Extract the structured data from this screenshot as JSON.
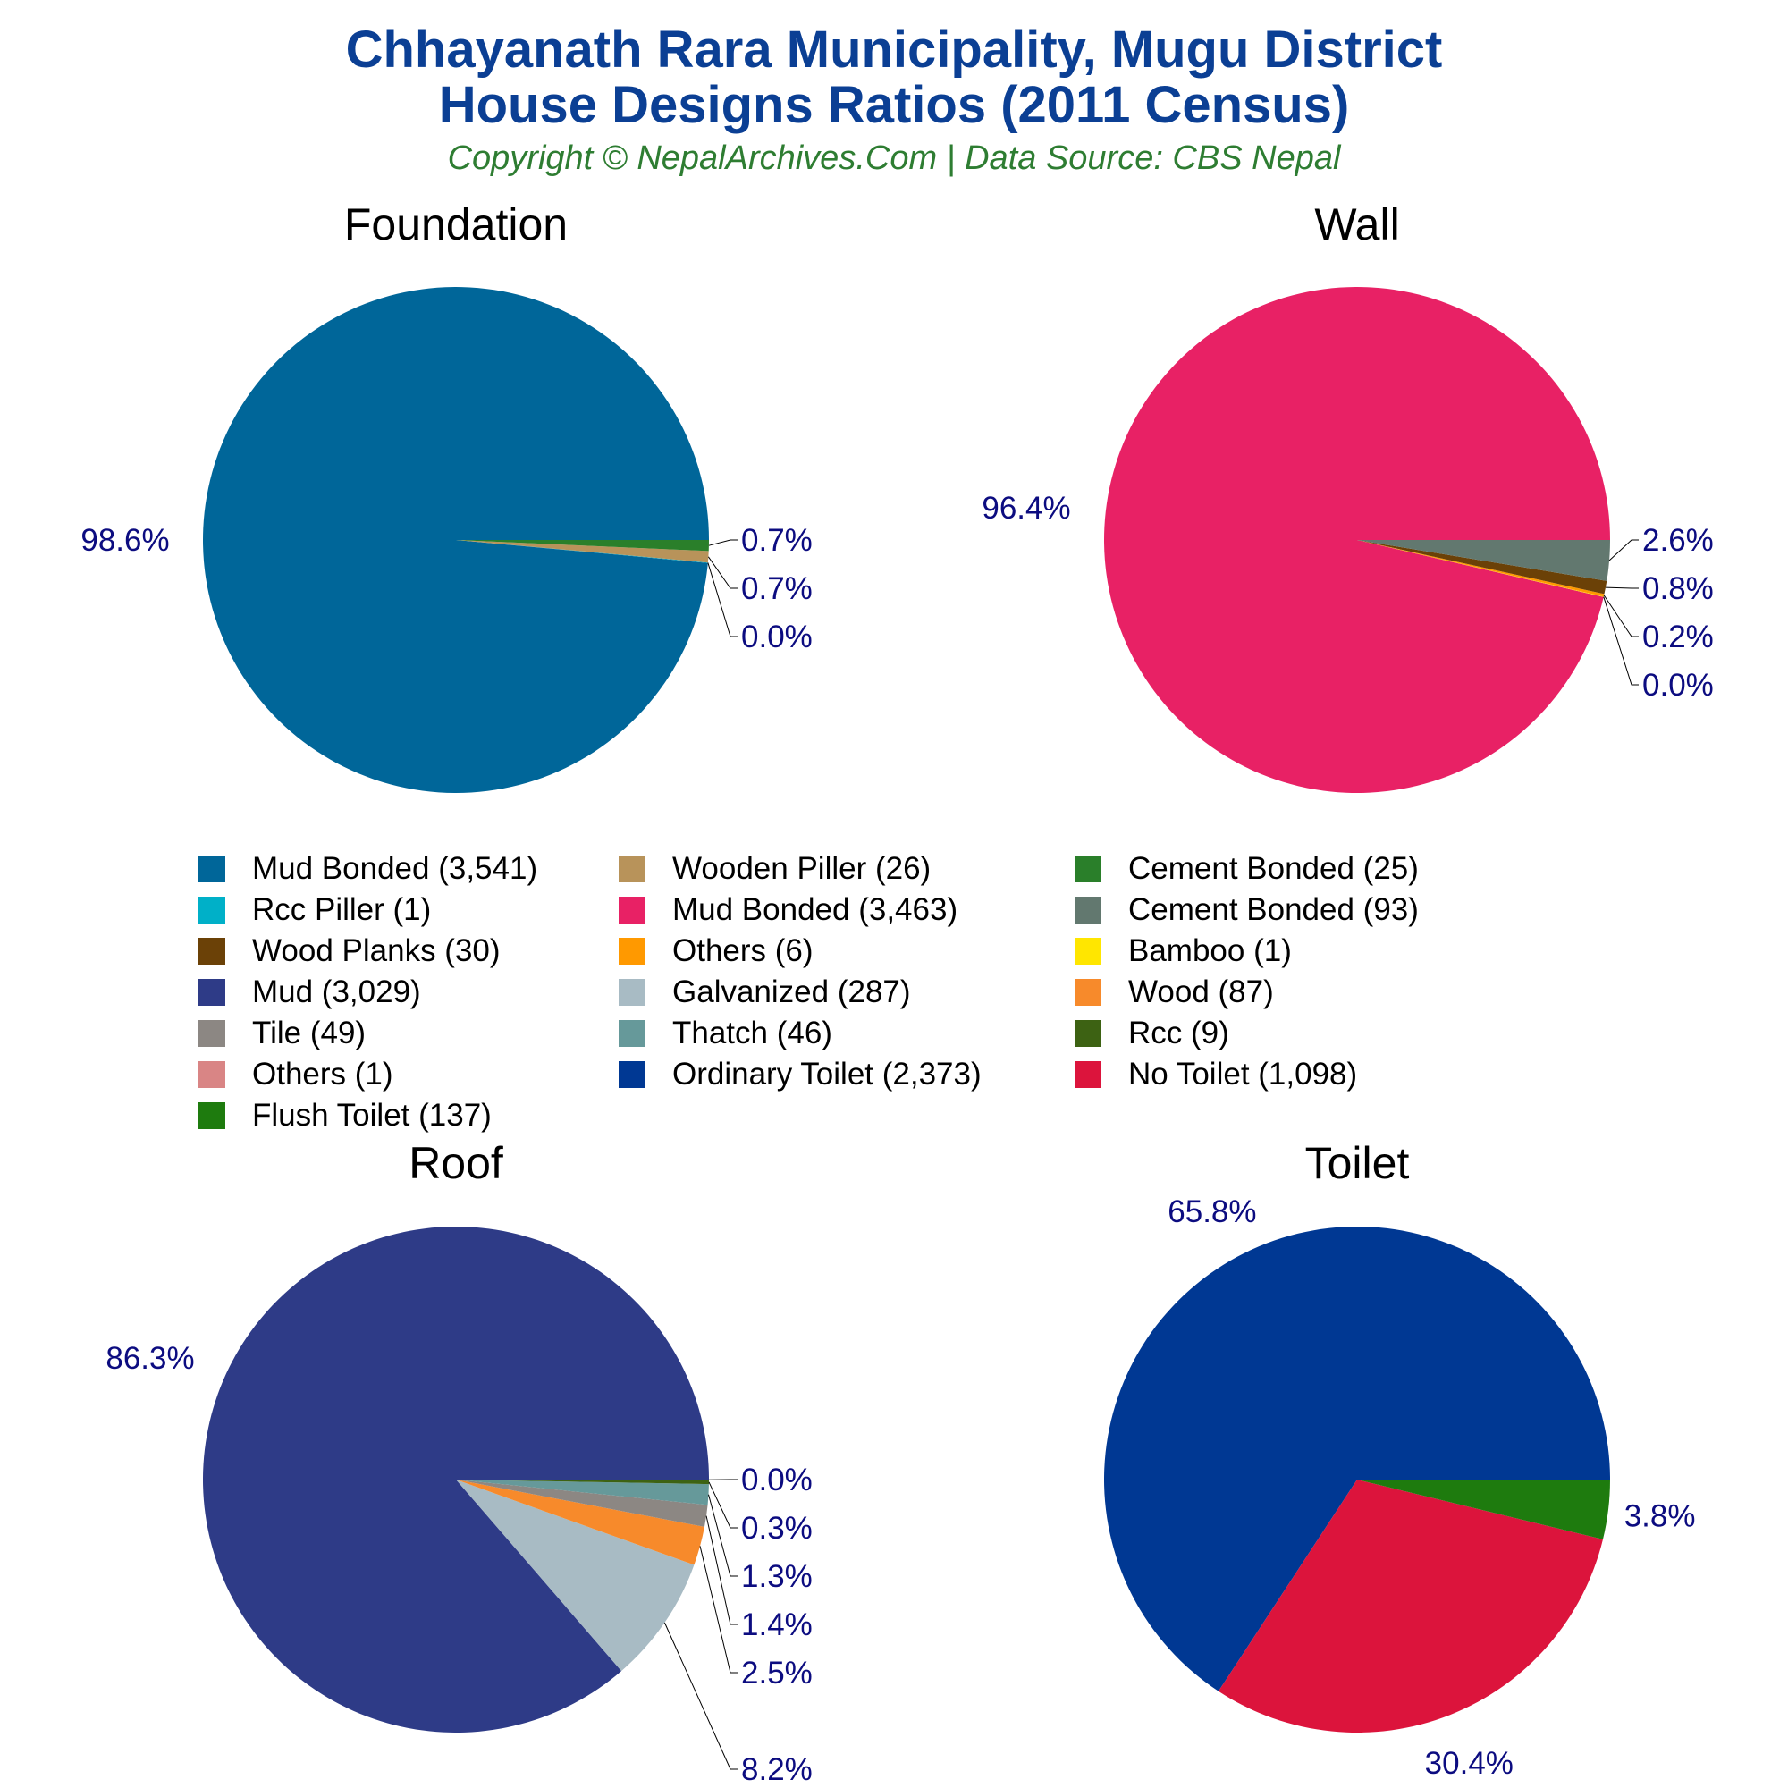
{
  "header": {
    "title_line1": "Chhayanath Rara Municipality, Mugu District",
    "title_line2": "House Designs Ratios (2011 Census)",
    "subtitle": "Copyright © NepalArchives.Com | Data Source: CBS Nepal"
  },
  "chart_data": [
    {
      "type": "pie",
      "title": "Foundation",
      "slices": [
        {
          "label": "Mud Bonded",
          "value": 3541,
          "pct_label": "98.6%",
          "color": "#006699"
        },
        {
          "label": "Rcc Piller",
          "value": 1,
          "pct_label": "0.0%",
          "color": "#00b0c8"
        },
        {
          "label": "Wooden Piller",
          "value": 26,
          "pct_label": "0.7%",
          "color": "#b8935a"
        },
        {
          "label": "Cement Bonded",
          "value": 25,
          "pct_label": "0.7%",
          "color": "#2a7f2a"
        }
      ]
    },
    {
      "type": "pie",
      "title": "Wall",
      "slices": [
        {
          "label": "Mud Bonded",
          "value": 3463,
          "pct_label": "96.4%",
          "color": "#e82165"
        },
        {
          "label": "Bamboo",
          "value": 1,
          "pct_label": "0.0%",
          "color": "#ffe600"
        },
        {
          "label": "Others",
          "value": 6,
          "pct_label": "0.2%",
          "color": "#ff9900"
        },
        {
          "label": "Wood Planks",
          "value": 30,
          "pct_label": "0.8%",
          "color": "#6b4107"
        },
        {
          "label": "Cement Bonded",
          "value": 93,
          "pct_label": "2.6%",
          "color": "#62786f"
        }
      ]
    },
    {
      "type": "pie",
      "title": "Roof",
      "slices": [
        {
          "label": "Mud",
          "value": 3029,
          "pct_label": "86.3%",
          "color": "#2e3b87"
        },
        {
          "label": "Galvanized",
          "value": 287,
          "pct_label": "8.2%",
          "color": "#a8bbc4"
        },
        {
          "label": "Wood",
          "value": 87,
          "pct_label": "2.5%",
          "color": "#f78a2b"
        },
        {
          "label": "Tile",
          "value": 49,
          "pct_label": "1.4%",
          "color": "#8c8783"
        },
        {
          "label": "Thatch",
          "value": 46,
          "pct_label": "1.3%",
          "color": "#66999a"
        },
        {
          "label": "Rcc",
          "value": 9,
          "pct_label": "0.3%",
          "color": "#3d6213"
        },
        {
          "label": "Others",
          "value": 1,
          "pct_label": "0.0%",
          "color": "#d98585"
        }
      ]
    },
    {
      "type": "pie",
      "title": "Toilet",
      "slices": [
        {
          "label": "Ordinary Toilet",
          "value": 2373,
          "pct_label": "65.8%",
          "color": "#003893"
        },
        {
          "label": "No Toilet",
          "value": 1098,
          "pct_label": "30.4%",
          "color": "#dc143c"
        },
        {
          "label": "Flush Toilet",
          "value": 137,
          "pct_label": "3.8%",
          "color": "#1e7b0e"
        }
      ]
    }
  ],
  "legend": {
    "placement": "center",
    "items": [
      {
        "label": "Mud Bonded (3,541)",
        "color": "#006699"
      },
      {
        "label": "Wooden Piller (26)",
        "color": "#b8935a"
      },
      {
        "label": "Cement Bonded (25)",
        "color": "#2a7f2a"
      },
      {
        "label": "Rcc Piller (1)",
        "color": "#00b0c8"
      },
      {
        "label": "Mud Bonded (3,463)",
        "color": "#e82165"
      },
      {
        "label": "Cement Bonded (93)",
        "color": "#62786f"
      },
      {
        "label": "Wood Planks (30)",
        "color": "#6b4107"
      },
      {
        "label": "Others (6)",
        "color": "#ff9900"
      },
      {
        "label": "Bamboo (1)",
        "color": "#ffe600"
      },
      {
        "label": "Mud (3,029)",
        "color": "#2e3b87"
      },
      {
        "label": "Galvanized (287)",
        "color": "#a8bbc4"
      },
      {
        "label": "Wood (87)",
        "color": "#f78a2b"
      },
      {
        "label": "Tile (49)",
        "color": "#8c8783"
      },
      {
        "label": "Thatch (46)",
        "color": "#66999a"
      },
      {
        "label": "Rcc (9)",
        "color": "#3d6213"
      },
      {
        "label": "Others (1)",
        "color": "#d98585"
      },
      {
        "label": "Ordinary Toilet (2,373)",
        "color": "#003893"
      },
      {
        "label": "No Toilet (1,098)",
        "color": "#dc143c"
      },
      {
        "label": "Flush Toilet (137)",
        "color": "#1e7b0e"
      }
    ]
  }
}
